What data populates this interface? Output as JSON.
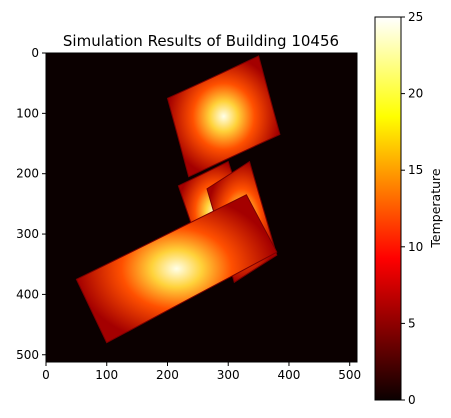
{
  "chart_data": {
    "type": "heatmap",
    "title": "Simulation Results of Building 10456",
    "x_ticks": [
      0,
      100,
      200,
      300,
      400,
      500
    ],
    "y_ticks": [
      0,
      100,
      200,
      300,
      400,
      500
    ],
    "xlim": [
      0,
      512
    ],
    "ylim": [
      512,
      0
    ],
    "colorbar": {
      "label": "Temperature",
      "min": 0,
      "max": 25,
      "ticks": [
        0,
        5,
        10,
        15,
        20,
        25
      ],
      "colormap": "hot"
    },
    "background_value": 0,
    "building_wings": [
      {
        "name": "",
        "polygon": [
          [
            200,
            75
          ],
          [
            350,
            5
          ],
          [
            385,
            135
          ],
          [
            235,
            205
          ]
        ],
        "peak_value": 25
      },
      {
        "name": "",
        "polygon": [
          [
            218,
            220
          ],
          [
            300,
            180
          ],
          [
            340,
            300
          ],
          [
            260,
            345
          ]
        ],
        "peak_value": 25
      },
      {
        "name": "",
        "polygon": [
          [
            265,
            225
          ],
          [
            335,
            180
          ],
          [
            380,
            335
          ],
          [
            310,
            380
          ]
        ],
        "peak_value": 24
      },
      {
        "name": "",
        "polygon": [
          [
            50,
            375
          ],
          [
            330,
            235
          ],
          [
            380,
            330
          ],
          [
            100,
            480
          ]
        ],
        "peak_value": 25
      }
    ]
  },
  "colors": {
    "background": "#0b0000",
    "frame": "#000000"
  }
}
